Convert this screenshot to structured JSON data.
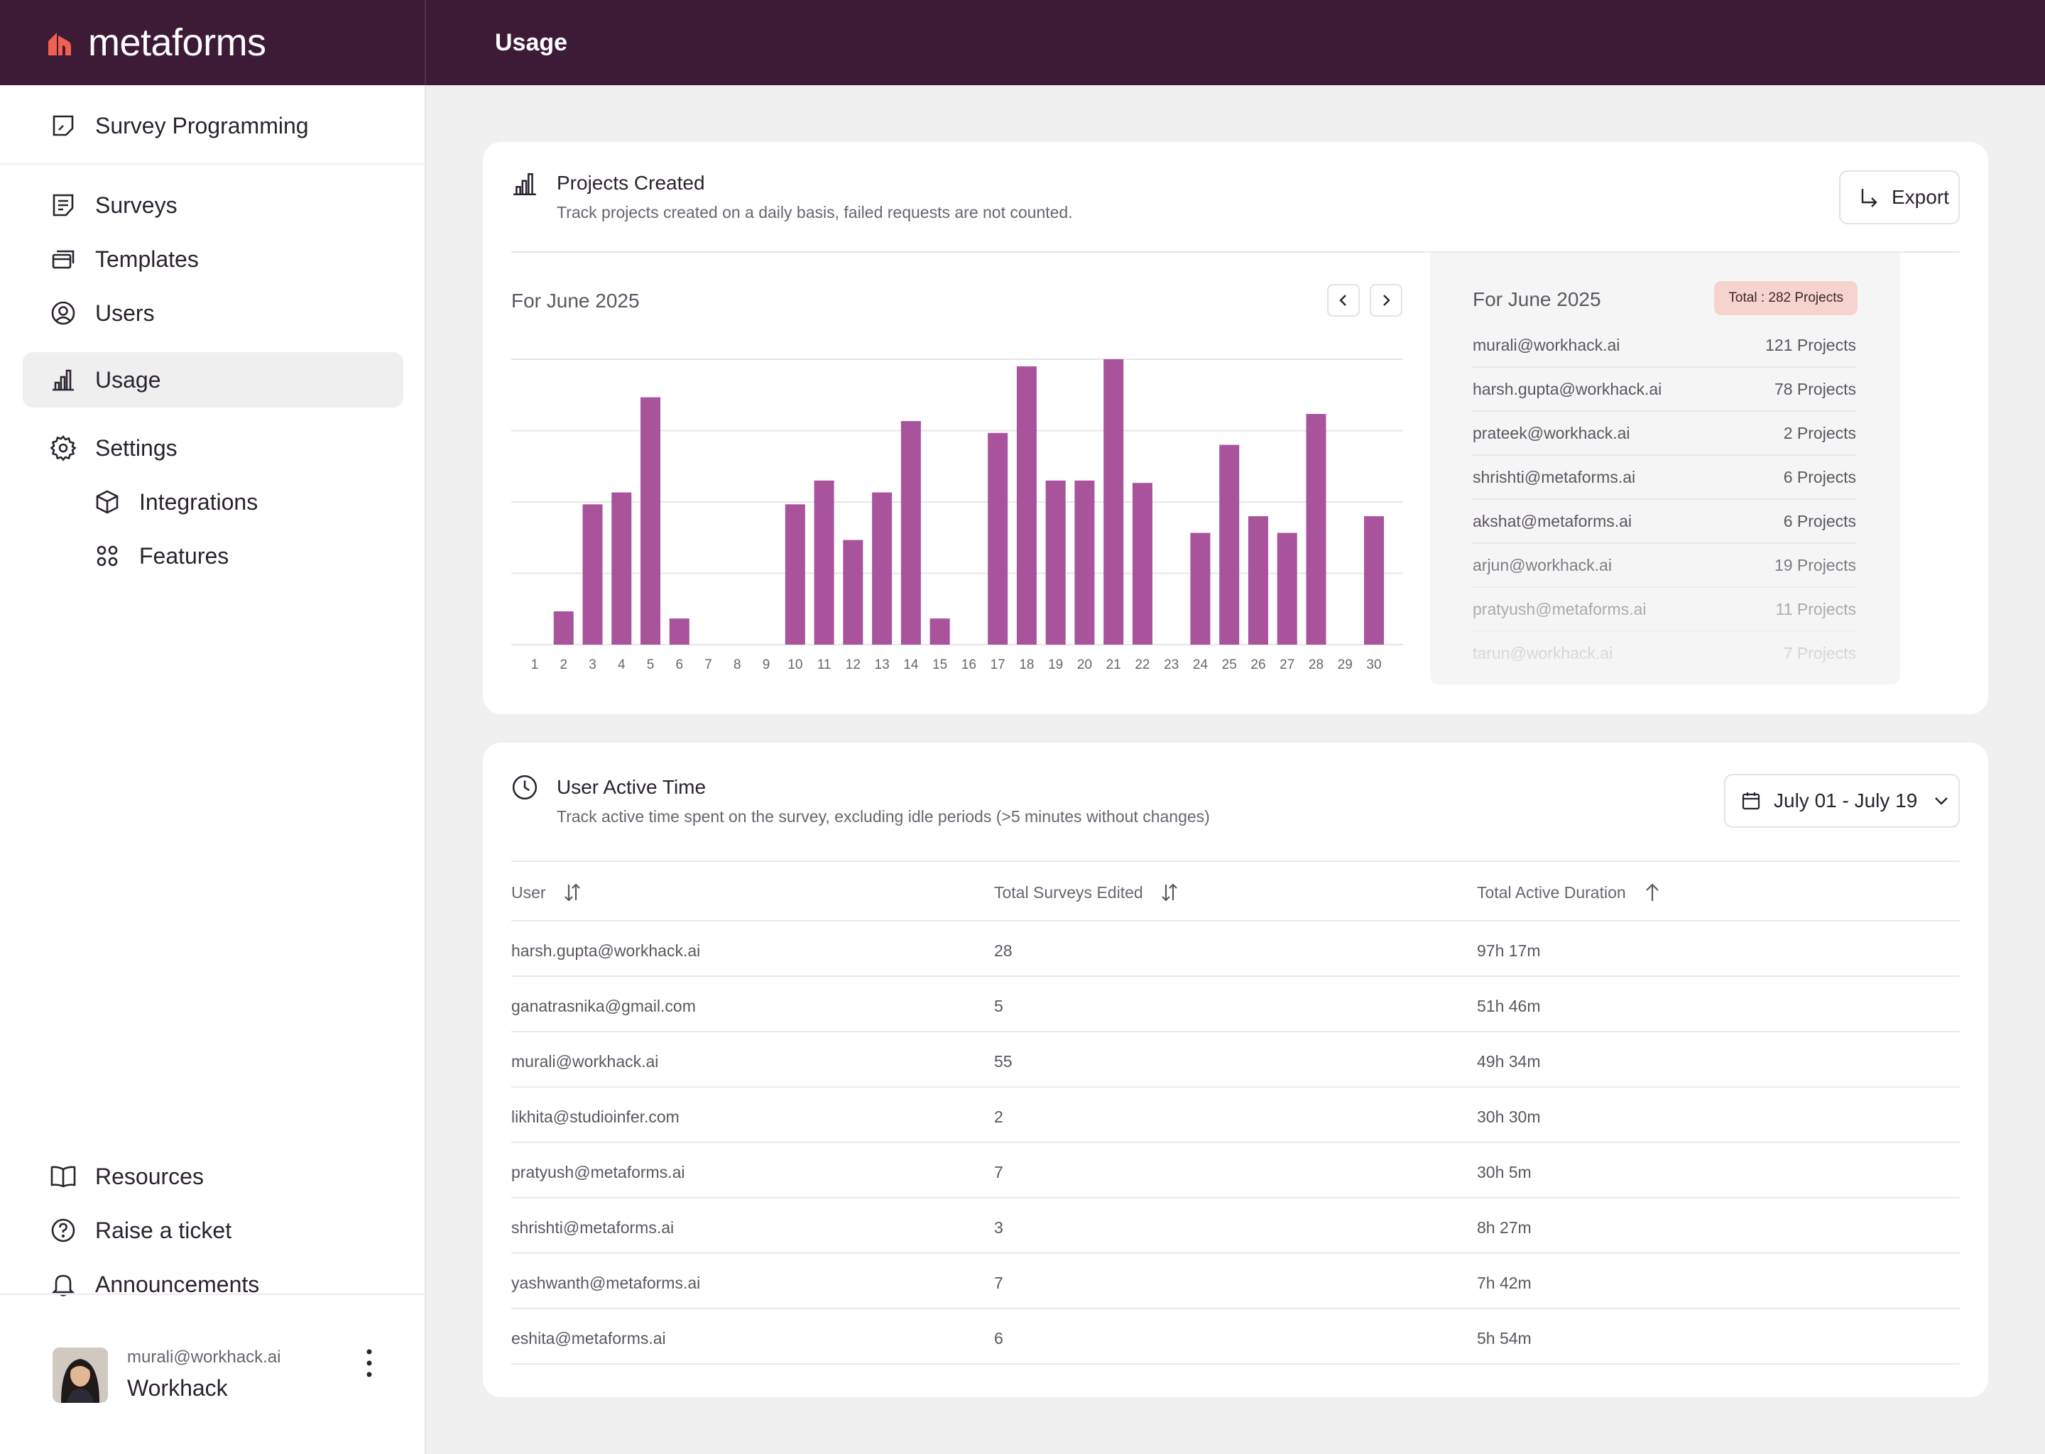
{
  "app": {
    "name": "metaforms",
    "page_title": "Usage"
  },
  "sidebar": {
    "top": {
      "label": "Survey Programming"
    },
    "items": [
      {
        "label": "Surveys"
      },
      {
        "label": "Templates"
      },
      {
        "label": "Users"
      },
      {
        "label": "Usage"
      },
      {
        "label": "Settings"
      },
      {
        "label": "Integrations"
      },
      {
        "label": "Features"
      }
    ],
    "bottom": [
      {
        "label": "Resources"
      },
      {
        "label": "Raise a ticket"
      },
      {
        "label": "Announcements"
      }
    ],
    "user": {
      "email": "murali@workhack.ai",
      "org": "Workhack"
    }
  },
  "projects_card": {
    "title": "Projects Created",
    "subtitle": "Track projects created on a daily basis, failed requests are not counted.",
    "export_label": "Export",
    "period": "For June 2025",
    "panel_period": "For June 2025",
    "total_badge": "Total : 282 Projects",
    "users": [
      {
        "email": "murali@workhack.ai",
        "count": "121 Projects"
      },
      {
        "email": "harsh.gupta@workhack.ai",
        "count": "78 Projects"
      },
      {
        "email": "prateek@workhack.ai",
        "count": "2 Projects"
      },
      {
        "email": "shrishti@metaforms.ai",
        "count": "6 Projects"
      },
      {
        "email": "akshat@metaforms.ai",
        "count": "6 Projects"
      },
      {
        "email": "arjun@workhack.ai",
        "count": "19 Projects"
      },
      {
        "email": "pratyush@metaforms.ai",
        "count": "11 Projects"
      },
      {
        "email": "tarun@workhack.ai",
        "count": "7 Projects"
      }
    ]
  },
  "chart_data": {
    "type": "bar",
    "title": "Projects Created",
    "xlabel": "",
    "ylabel": "",
    "ylim": [
      0,
      12
    ],
    "grid": true,
    "color": "#a8539b",
    "categories": [
      "1",
      "2",
      "3",
      "4",
      "5",
      "6",
      "7",
      "8",
      "9",
      "10",
      "11",
      "12",
      "13",
      "14",
      "15",
      "16",
      "17",
      "18",
      "19",
      "20",
      "21",
      "22",
      "23",
      "24",
      "25",
      "26",
      "27",
      "28",
      "29",
      "30"
    ],
    "values": [
      0,
      1.4,
      5.9,
      6.4,
      10.4,
      1.1,
      0,
      0,
      0,
      5.9,
      6.9,
      4.4,
      6.4,
      9.4,
      1.1,
      0,
      8.9,
      11.7,
      6.9,
      6.9,
      12,
      6.8,
      0,
      4.7,
      8.4,
      5.4,
      4.7,
      9.7,
      0,
      5.4
    ]
  },
  "active_card": {
    "title": "User Active Time",
    "subtitle": "Track active time spent on the survey, excluding idle periods (>5 minutes without changes)",
    "date_range": "July 01 - July 19",
    "columns": [
      "User",
      "Total Surveys Edited",
      "Total Active Duration"
    ],
    "rows": [
      {
        "user": "harsh.gupta@workhack.ai",
        "surveys": "28",
        "duration": "97h 17m"
      },
      {
        "user": "ganatrasnika@gmail.com",
        "surveys": "5",
        "duration": "51h 46m"
      },
      {
        "user": "murali@workhack.ai",
        "surveys": "55",
        "duration": "49h 34m"
      },
      {
        "user": "likhita@studioinfer.com",
        "surveys": "2",
        "duration": "30h 30m"
      },
      {
        "user": "pratyush@metaforms.ai",
        "surveys": "7",
        "duration": "30h 5m"
      },
      {
        "user": "shrishti@metaforms.ai",
        "surveys": "3",
        "duration": "8h 27m"
      },
      {
        "user": "yashwanth@metaforms.ai",
        "surveys": "7",
        "duration": "7h 42m"
      },
      {
        "user": "eshita@metaforms.ai",
        "surveys": "6",
        "duration": "5h 54m"
      }
    ]
  },
  "colors": {
    "topbar": "#3d1a36",
    "accent_bar": "#a8539b",
    "logo": "#f0624d",
    "badge_bg": "#f6d3cc"
  }
}
